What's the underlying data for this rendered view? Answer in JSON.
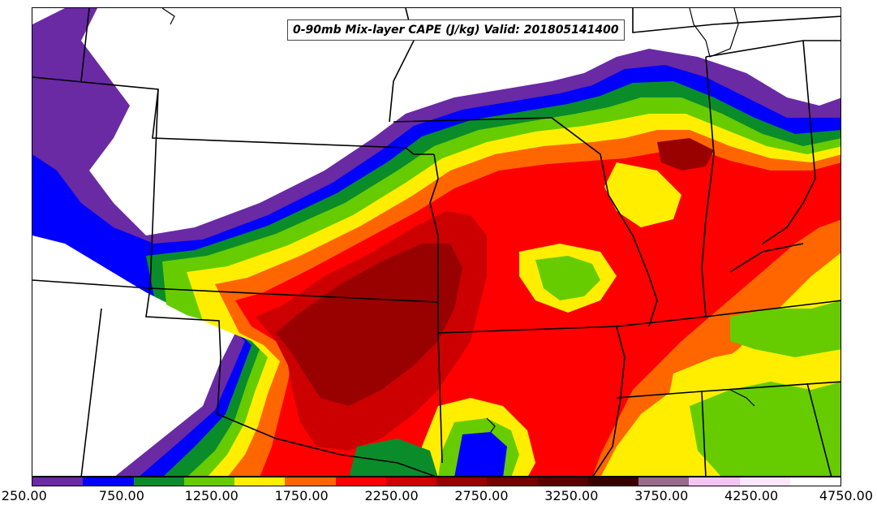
{
  "title": "0-90mb Mix-layer CAPE (J/kg) Valid: 201805141400",
  "colorbar": {
    "colors": [
      "#6a2aa4",
      "#0000ff",
      "#0a8c2a",
      "#66cc00",
      "#ffee00",
      "#ff6600",
      "#ff0000",
      "#cc0000",
      "#990000",
      "#770000",
      "#5a0000",
      "#3a0000",
      "#9a6a8a",
      "#f4c4f4",
      "#fbe6fb",
      "#ffffff"
    ],
    "tick_labels": [
      "250.00",
      "750.00",
      "1250.00",
      "1750.00",
      "2250.00",
      "2750.00",
      "3250.00",
      "3750.00",
      "4250.00",
      "4750.00"
    ]
  }
}
